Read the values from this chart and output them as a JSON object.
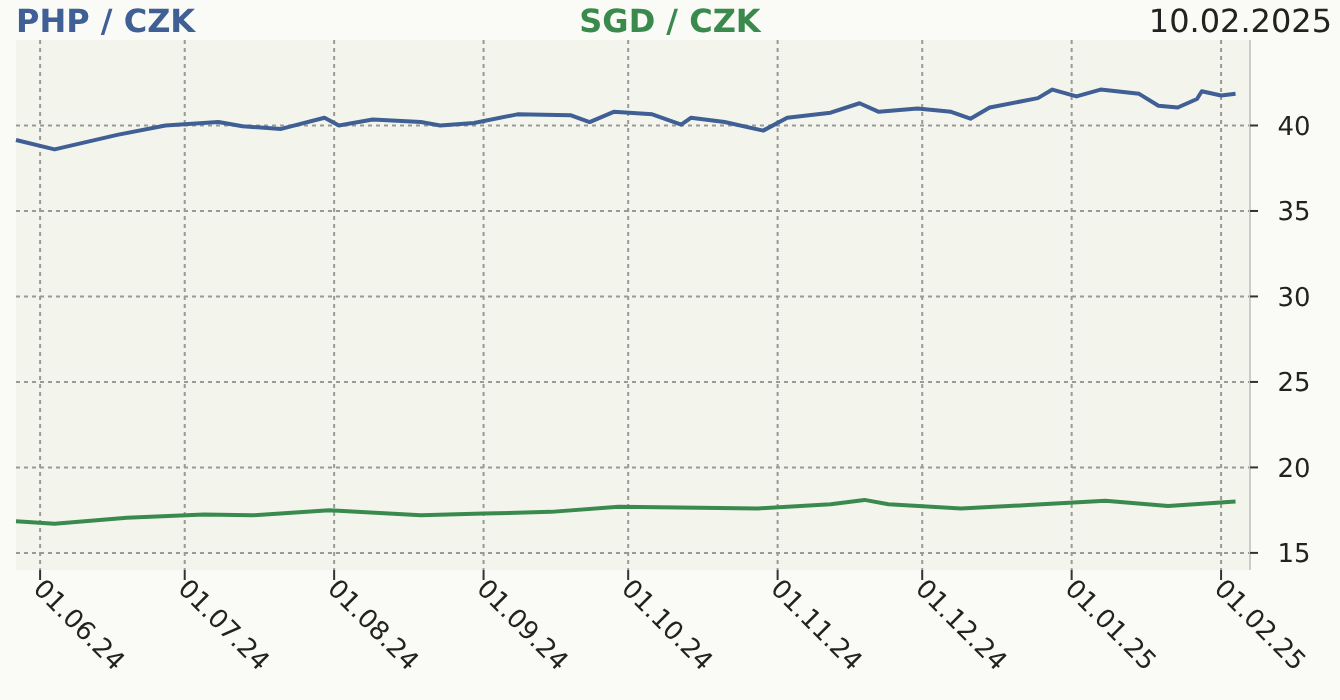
{
  "chart_data": {
    "type": "line",
    "x": [
      "2024-05-27",
      "2024-06-04",
      "2024-06-17",
      "2024-06-27",
      "2024-07-08",
      "2024-07-13",
      "2024-07-21",
      "2024-07-30",
      "2024-08-02",
      "2024-08-09",
      "2024-08-19",
      "2024-08-23",
      "2024-08-30",
      "2024-09-08",
      "2024-09-19",
      "2024-09-23",
      "2024-09-28",
      "2024-10-06",
      "2024-10-12",
      "2024-10-14",
      "2024-10-21",
      "2024-10-29",
      "2024-11-03",
      "2024-11-12",
      "2024-11-18",
      "2024-11-22",
      "2024-11-30",
      "2024-12-07",
      "2024-12-11",
      "2024-12-15",
      "2024-12-25",
      "2024-12-28",
      "2025-01-02",
      "2025-01-07",
      "2025-01-15",
      "2025-01-19",
      "2025-01-23",
      "2025-01-27",
      "2025-01-28",
      "2025-02-01",
      "2025-02-04"
    ],
    "series": [
      {
        "name": "PHP / CZK",
        "color": "#3f5f95",
        "values": [
          39.15,
          38.6,
          39.45,
          40.0,
          40.2,
          39.95,
          39.8,
          40.45,
          40.0,
          40.35,
          40.2,
          40.0,
          40.15,
          40.65,
          40.6,
          40.2,
          40.8,
          40.65,
          40.05,
          40.45,
          40.2,
          39.7,
          40.45,
          40.75,
          41.3,
          40.8,
          41.0,
          40.8,
          40.4,
          41.05,
          41.6,
          42.1,
          41.7,
          42.1,
          41.85,
          41.15,
          41.05,
          41.55,
          42.0,
          41.75,
          41.85
        ]
      },
      {
        "name": "SGD / CZK",
        "color": "#3a8a4e",
        "x": [
          "2024-05-27",
          "2024-06-04",
          "2024-06-19",
          "2024-07-05",
          "2024-07-15",
          "2024-07-31",
          "2024-08-19",
          "2024-09-01",
          "2024-09-15",
          "2024-09-29",
          "2024-10-28",
          "2024-11-12",
          "2024-11-19",
          "2024-11-24",
          "2024-12-09",
          "2024-12-23",
          "2025-01-08",
          "2025-01-21",
          "2025-02-04"
        ],
        "values": [
          16.85,
          16.7,
          17.05,
          17.25,
          17.2,
          17.5,
          17.2,
          17.3,
          17.4,
          17.7,
          17.6,
          17.85,
          18.1,
          17.85,
          17.6,
          17.8,
          18.05,
          17.75,
          18.0
        ]
      }
    ],
    "xlim": [
      "2024-05-27",
      "2025-02-07"
    ],
    "xticks": [
      {
        "value": "2024-06-01",
        "label": "01.06.24"
      },
      {
        "value": "2024-07-01",
        "label": "01.07.24"
      },
      {
        "value": "2024-08-01",
        "label": "01.08.24"
      },
      {
        "value": "2024-09-01",
        "label": "01.09.24"
      },
      {
        "value": "2024-10-01",
        "label": "01.10.24"
      },
      {
        "value": "2024-11-01",
        "label": "01.11.24"
      },
      {
        "value": "2024-12-01",
        "label": "01.12.24"
      },
      {
        "value": "2025-01-01",
        "label": "01.01.25"
      },
      {
        "value": "2025-02-01",
        "label": "01.02.25"
      }
    ],
    "ylim": [
      14,
      45
    ],
    "yticks": [
      15,
      20,
      25,
      30,
      35,
      40
    ],
    "grid": true,
    "legend": "top",
    "line_style": "solid",
    "marker": "none",
    "annotations": [
      "10.02.2025"
    ]
  }
}
